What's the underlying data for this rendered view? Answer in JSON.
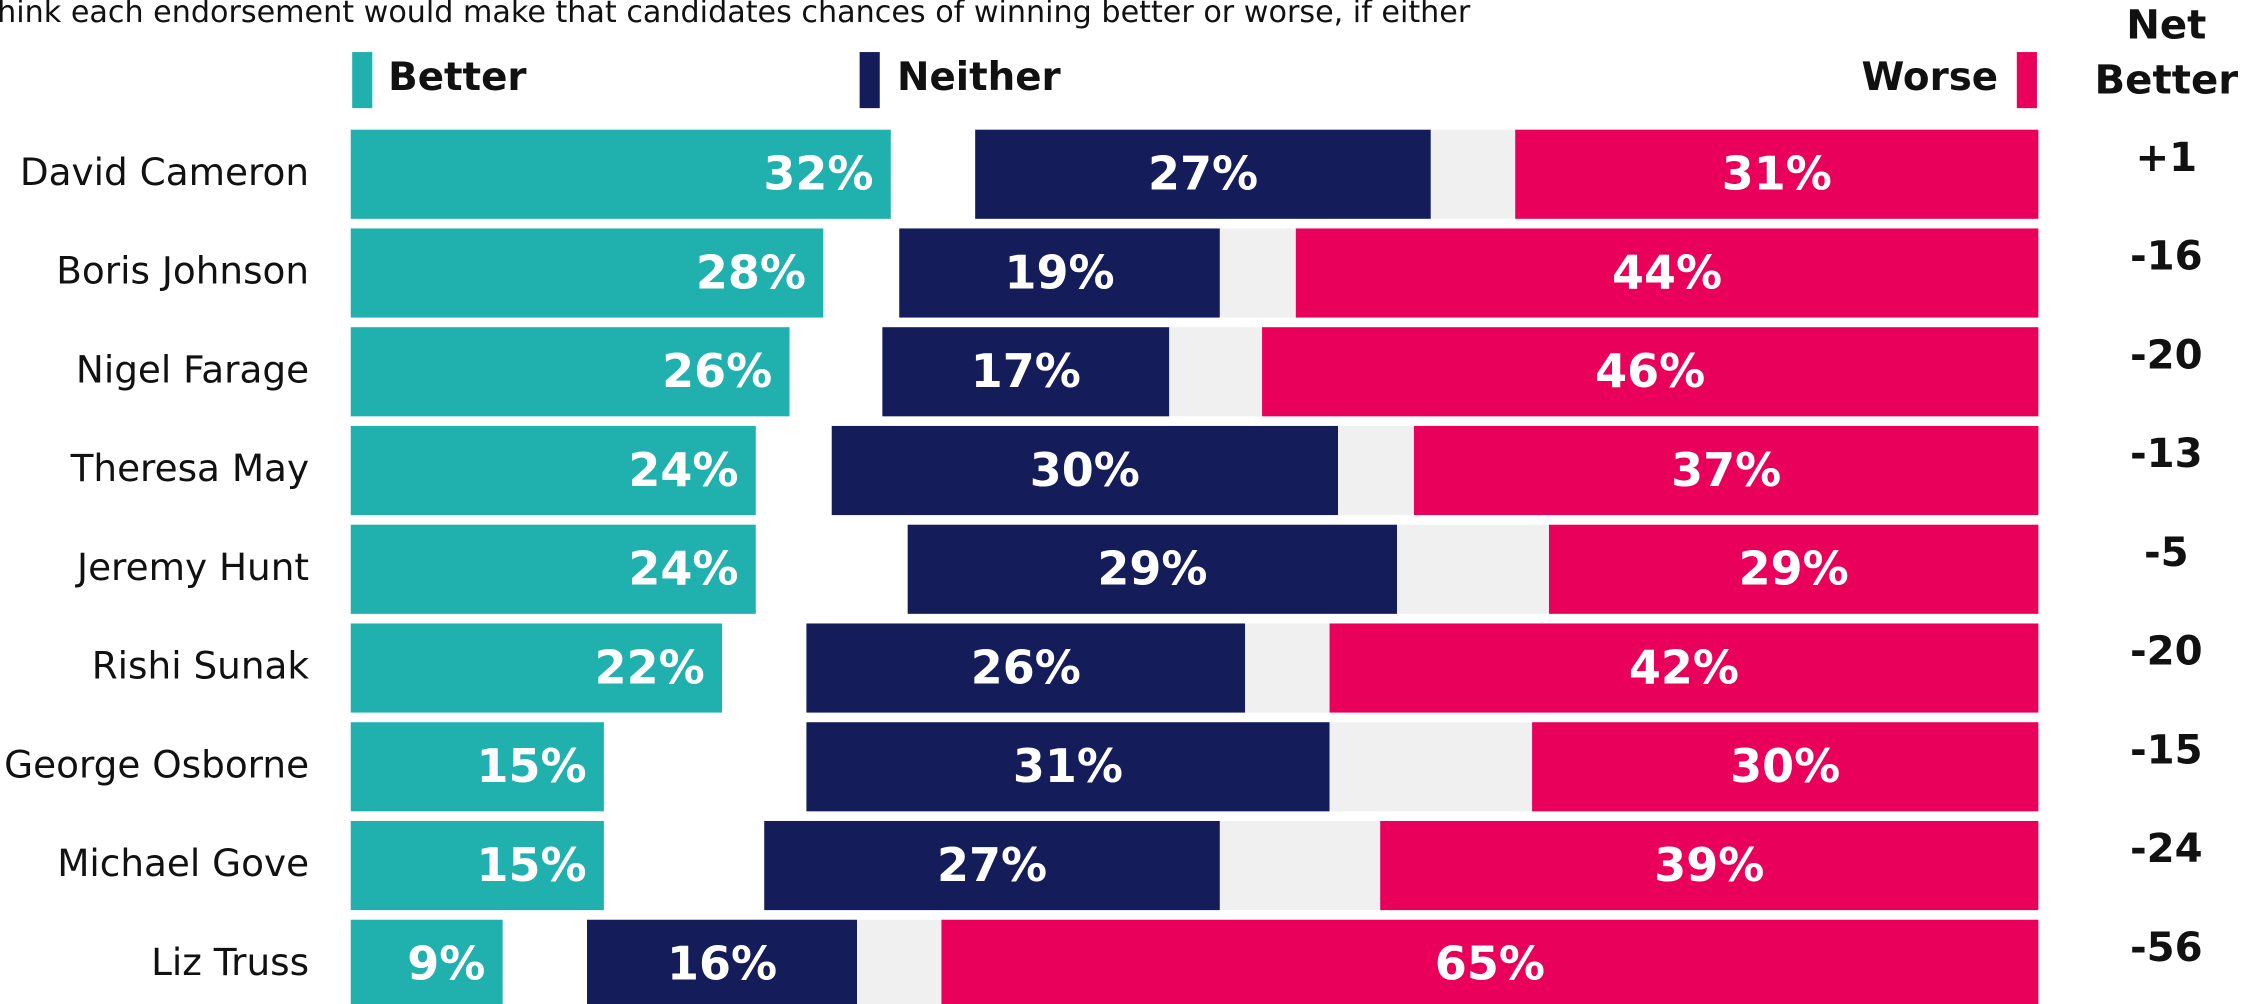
{
  "chart_data": {
    "type": "stacked_bar_h",
    "subtitle": "hink each endorsement would make that candidates chances of winning better or worse, if either",
    "categories": [
      "David Cameron",
      "Boris Johnson",
      "Nigel Farage",
      "Theresa May",
      "Jeremy Hunt",
      "Rishi Sunak",
      "George Osborne",
      "Michael Gove",
      "Liz Truss"
    ],
    "xlim": [
      0,
      100
    ],
    "series": [
      {
        "name": "Better",
        "color": "#20b0ae",
        "values": [
          32,
          28,
          26,
          24,
          24,
          22,
          15,
          15,
          9
        ],
        "value_labels": [
          "32%",
          "28%",
          "26%",
          "24%",
          "24%",
          "22%",
          "15%",
          "15%",
          "9%"
        ]
      },
      {
        "name": "Neither",
        "color": "#141c5a",
        "values": [
          27,
          19,
          17,
          30,
          29,
          26,
          31,
          27,
          16
        ],
        "value_labels": [
          "27%",
          "19%",
          "17%",
          "30%",
          "29%",
          "26%",
          "31%",
          "27%",
          "16%"
        ]
      },
      {
        "name": "Worse",
        "color": "#e8005a",
        "values": [
          31,
          44,
          46,
          37,
          29,
          42,
          30,
          39,
          65
        ],
        "value_labels": [
          "31%",
          "44%",
          "46%",
          "37%",
          "29%",
          "42%",
          "30%",
          "39%",
          "65%"
        ]
      }
    ],
    "remainder_color": "#f0f0f0",
    "net_better": {
      "title_lines": [
        "Net",
        "Better"
      ],
      "values": [
        1,
        -16,
        -20,
        -13,
        -5,
        -20,
        -15,
        -24,
        -56
      ],
      "value_labels": [
        "+1",
        "-16",
        "-20",
        "-13",
        "-5",
        "-20",
        "-15",
        "-24",
        "-56"
      ]
    }
  }
}
